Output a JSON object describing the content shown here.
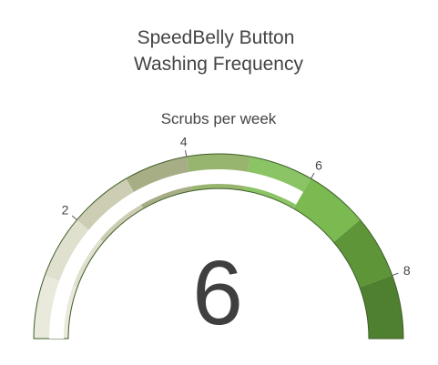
{
  "chart_data": {
    "type": "gauge",
    "title_line1": "SpeedBelly Button",
    "title_line2": "Washing Frequency",
    "subtitle": "Scrubs per week",
    "value": 6,
    "range": [
      0,
      9
    ],
    "ticks": [
      {
        "value": 2,
        "label": "2"
      },
      {
        "value": 4,
        "label": "4"
      },
      {
        "value": 6,
        "label": "6"
      },
      {
        "value": 8,
        "label": "8"
      }
    ],
    "bands": [
      {
        "from": 0,
        "to": 1,
        "color": "#e9e9dc"
      },
      {
        "from": 1,
        "to": 2,
        "color": "#dfe0cd"
      },
      {
        "from": 2,
        "to": 3,
        "color": "#cccdb2"
      },
      {
        "from": 3,
        "to": 4,
        "color": "#a7ae85"
      },
      {
        "from": 4,
        "to": 5,
        "color": "#98b56f"
      },
      {
        "from": 5,
        "to": 6,
        "color": "#8ac465"
      },
      {
        "from": 6,
        "to": 7,
        "color": "#7aba51"
      },
      {
        "from": 7,
        "to": 8,
        "color": "#5d9538"
      },
      {
        "from": 8,
        "to": 9,
        "color": "#4f802f"
      }
    ],
    "outline_color": "#3d5e28",
    "value_fill_color": "#ffffff"
  }
}
